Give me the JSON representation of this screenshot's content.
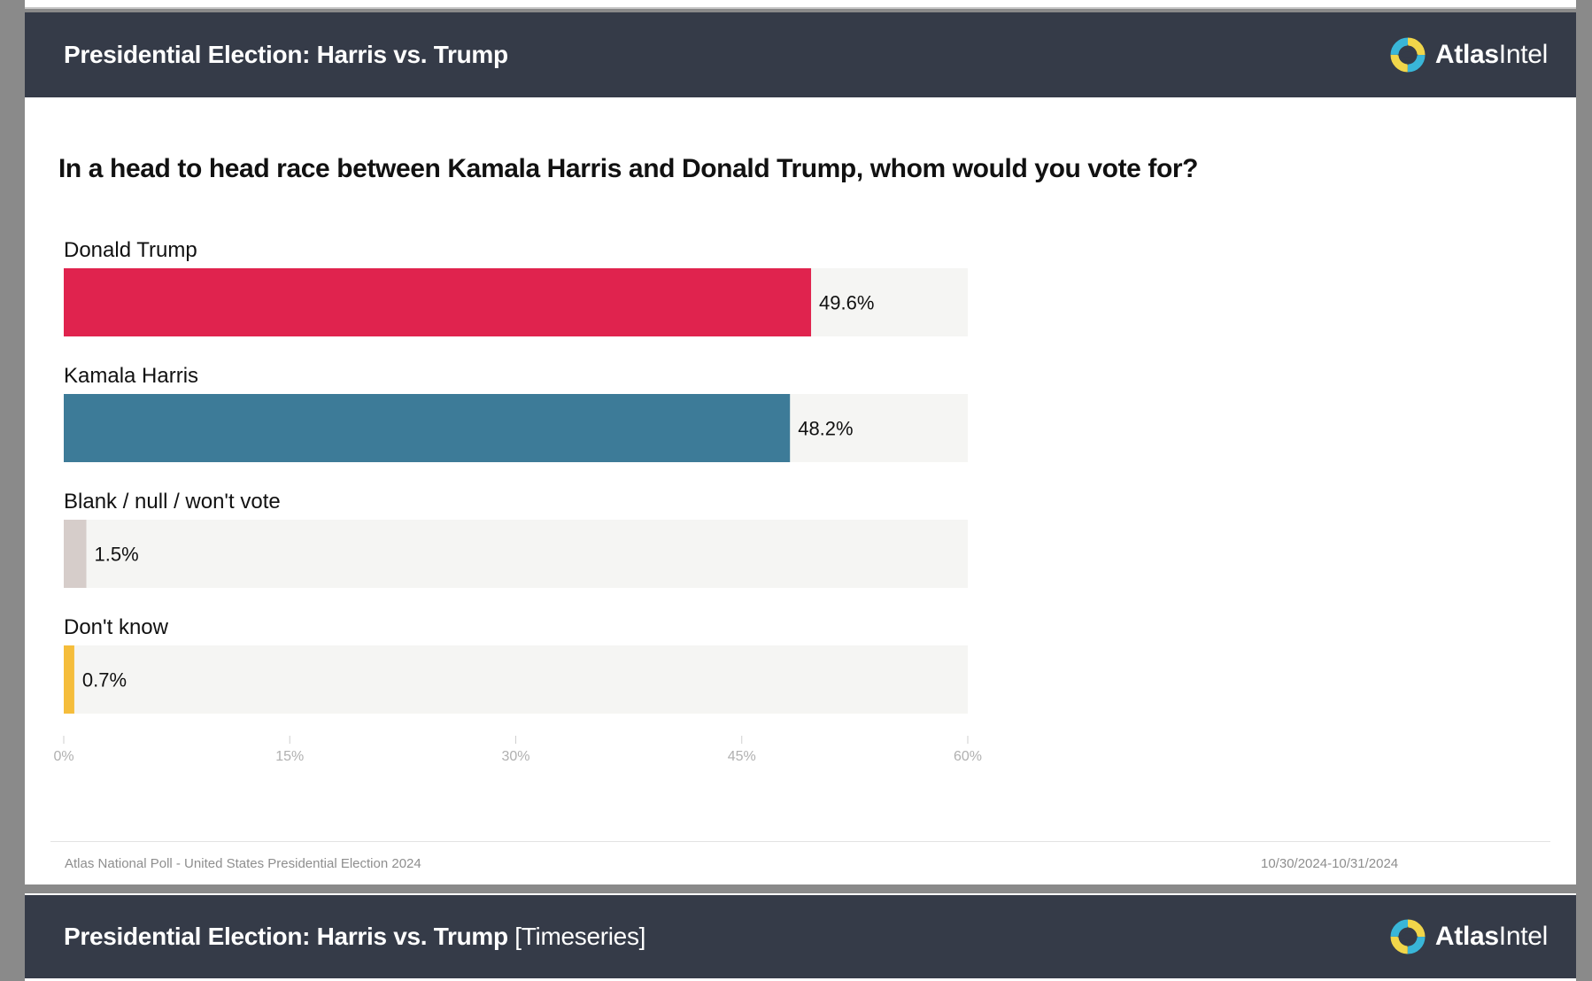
{
  "header": {
    "title": "Presidential Election: Harris vs. Trump",
    "brand_bold": "Atlas",
    "brand_regular": "Intel"
  },
  "question": "In a head to head race between Kamala Harris and Donald Trump, whom would you vote for?",
  "chart_data": {
    "type": "bar",
    "orientation": "horizontal",
    "title": "In a head to head race between Kamala Harris and Donald Trump, whom would you vote for?",
    "categories": [
      "Donald Trump",
      "Kamala Harris",
      "Blank / null / won't vote",
      "Don't know"
    ],
    "values": [
      49.6,
      48.2,
      1.5,
      0.7
    ],
    "value_labels": [
      "49.6%",
      "48.2%",
      "1.5%",
      "0.7%"
    ],
    "colors": [
      "#e0234e",
      "#3d7b98",
      "#d6cdca",
      "#f5bd3b"
    ],
    "track_color": "#f5f5f3",
    "xlim": [
      0,
      60
    ],
    "ticks": [
      0,
      15,
      30,
      45,
      60
    ],
    "tick_labels": [
      "0%",
      "15%",
      "30%",
      "45%",
      "60%"
    ],
    "xlabel": "",
    "ylabel": "",
    "grid": false,
    "legend": "none"
  },
  "footer": {
    "source": "Atlas National Poll - United States Presidential Election 2024",
    "dates": "10/30/2024-10/31/2024"
  },
  "next_panel": {
    "title": "Presidential Election: Harris vs. Trump",
    "suffix": "[Timeseries]"
  }
}
